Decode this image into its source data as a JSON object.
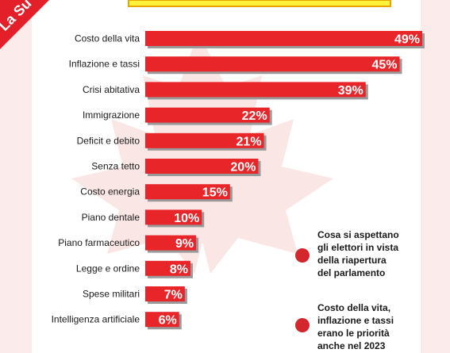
{
  "colors": {
    "bar": "#e8262a",
    "bar_shadow": "#9a9a9a",
    "header_yellow": "#fff23a",
    "header_border": "#e9a400",
    "flag_tint": "#f6d3d0",
    "badge": "#e3202a",
    "bullet": "#d4262d"
  },
  "badge": {
    "text": "La Su"
  },
  "notes": [
    "Cosa si aspettano gli elettori in vista della riapertura del parlamento",
    "Costo della vita, inflazione e tassi erano le priorità anche nel 2023"
  ],
  "chart_data": {
    "type": "bar",
    "orientation": "horizontal",
    "categories": [
      "Costo della vita",
      "Inflazione e tassi",
      "Crisi abitativa",
      "Immigrazione",
      "Deficit e debito",
      "Senza tetto",
      "Costo energia",
      "Piano dentale",
      "Piano farmaceutico",
      "Legge e ordine",
      "Spese militari",
      "Intelligenza artificiale"
    ],
    "values": [
      49,
      45,
      39,
      22,
      21,
      20,
      15,
      10,
      9,
      8,
      7,
      6
    ],
    "value_labels": [
      "49%",
      "45%",
      "39%",
      "22%",
      "21%",
      "20%",
      "15%",
      "10%",
      "9%",
      "8%",
      "7%",
      "6%"
    ],
    "unit": "%",
    "title": "",
    "xlabel": "",
    "ylabel": "",
    "xlim": [
      0,
      50
    ],
    "grid": false,
    "legend": "none"
  }
}
